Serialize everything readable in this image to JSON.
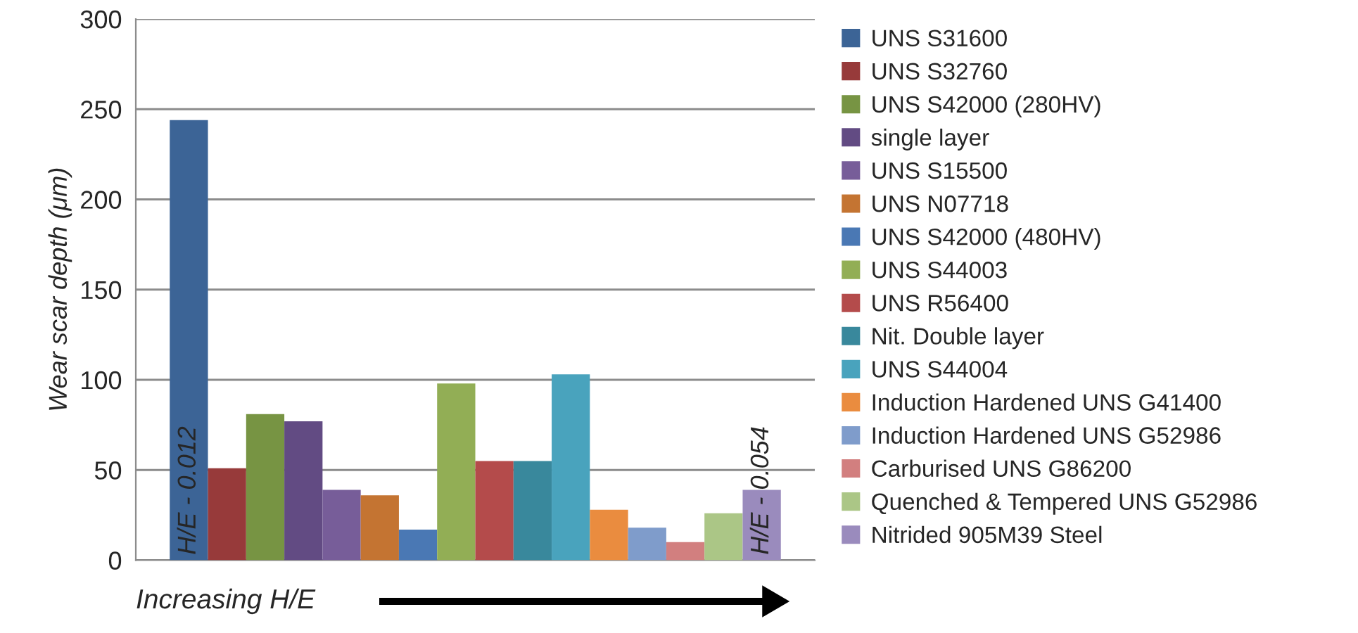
{
  "chart_data": {
    "type": "bar",
    "ylabel": "Wear scar depth (μm)",
    "categories": [
      null
    ],
    "ylim": [
      0,
      300
    ],
    "yticks": [
      0,
      50,
      100,
      150,
      200,
      250,
      300
    ],
    "grid": "y",
    "legend": "right",
    "annotations": [
      "H/E - 0.012",
      "H/E - 0.054",
      "Increasing H/E"
    ],
    "series": [
      {
        "name": "UNS S31600",
        "color": "#3c6496",
        "values": [
          244
        ]
      },
      {
        "name": "UNS S32760",
        "color": "#973a3a",
        "values": [
          51
        ]
      },
      {
        "name": "UNS S42000 (280HV)",
        "color": "#779443",
        "values": [
          81
        ]
      },
      {
        "name": "single layer",
        "color": "#624b83",
        "values": [
          77
        ]
      },
      {
        "name": "UNS S15500",
        "color": "#775d99",
        "values": [
          39
        ]
      },
      {
        "name": "UNS N07718",
        "color": "#c47432",
        "values": [
          36
        ]
      },
      {
        "name": "UNS S42000 (480HV)",
        "color": "#4a78b4",
        "values": [
          17
        ]
      },
      {
        "name": "UNS S44003",
        "color": "#92ae55",
        "values": [
          98
        ]
      },
      {
        "name": "UNS R56400",
        "color": "#b44b4b",
        "values": [
          55
        ]
      },
      {
        "name": "Nit. Double layer",
        "color": "#39889c",
        "values": [
          55
        ]
      },
      {
        "name": "UNS S44004",
        "color": "#49a3bd",
        "values": [
          103
        ]
      },
      {
        "name": "Induction Hardened UNS G41400",
        "color": "#ea8c3f",
        "values": [
          28
        ]
      },
      {
        "name": "Induction Hardened UNS G52986",
        "color": "#7f9ccb",
        "values": [
          18
        ]
      },
      {
        "name": "Carburised UNS G86200",
        "color": "#d27f7f",
        "values": [
          10
        ]
      },
      {
        "name": "Quenched & Tempered UNS G52986",
        "color": "#abc686",
        "values": [
          26
        ]
      },
      {
        "name": "Nitrided 905M39 Steel",
        "color": "#9a8bbd",
        "values": [
          39
        ]
      }
    ]
  }
}
